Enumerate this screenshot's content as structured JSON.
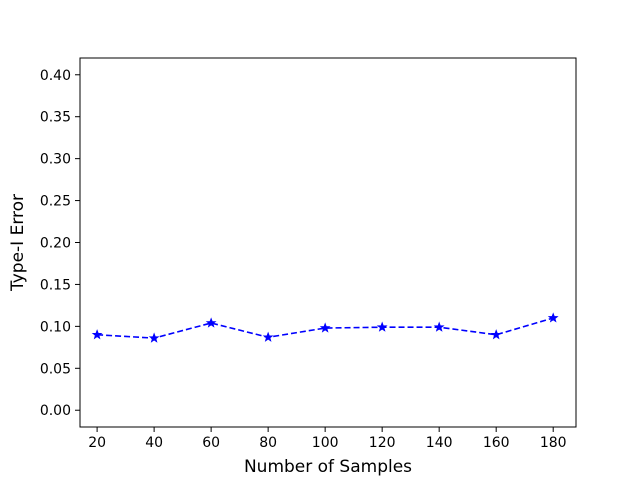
{
  "chart_data": {
    "type": "line",
    "xlabel": "Number of Samples",
    "ylabel": "Type-I Error",
    "xlim": [
      14,
      188
    ],
    "ylim": [
      -0.02,
      0.42
    ],
    "x_ticks": [
      20,
      40,
      60,
      80,
      100,
      120,
      140,
      160,
      180
    ],
    "y_ticks": [
      0.0,
      0.05,
      0.1,
      0.15,
      0.2,
      0.25,
      0.3,
      0.35,
      0.4
    ],
    "grid": false,
    "series": [
      {
        "x": [
          20,
          40,
          60,
          80,
          100,
          120,
          140,
          160,
          180
        ],
        "y": [
          0.09,
          0.086,
          0.104,
          0.087,
          0.098,
          0.099,
          0.099,
          0.09,
          0.11
        ],
        "color": "#0000ff",
        "line_style": "dashed",
        "marker": "star"
      }
    ]
  }
}
